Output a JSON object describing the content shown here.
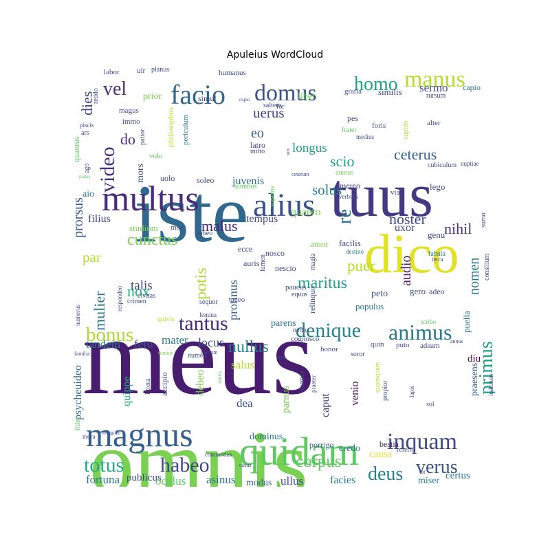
{
  "chart_data": {
    "type": "wordcloud",
    "title": "Apuleius WordCloud",
    "palette": [
      "#440154",
      "#3b528b",
      "#21918c",
      "#5ec962",
      "#fde725"
    ],
    "words": [
      {
        "text": "meus",
        "weight": 100,
        "color": "#481d6f"
      },
      {
        "text": "omnis",
        "weight": 92,
        "color": "#7ad151"
      },
      {
        "text": "iste",
        "weight": 80,
        "color": "#31688e"
      },
      {
        "text": "tuus",
        "weight": 58,
        "color": "#443983"
      },
      {
        "text": "dico",
        "weight": 52,
        "color": "#e0e22a"
      },
      {
        "text": "quidam",
        "weight": 42,
        "color": "#5ec962"
      },
      {
        "text": "multus",
        "weight": 40,
        "color": "#472d7b"
      },
      {
        "text": "alius",
        "weight": 36,
        "color": "#3b528b"
      },
      {
        "text": "magnus",
        "weight": 36,
        "color": "#355f8d"
      },
      {
        "text": "facio",
        "weight": 30,
        "color": "#31688e"
      },
      {
        "text": "domus",
        "weight": 26,
        "color": "#3b528b"
      },
      {
        "text": "manus",
        "weight": 26,
        "color": "#b5de2b"
      },
      {
        "text": "inquam",
        "weight": 25,
        "color": "#3e4989"
      },
      {
        "text": "animus",
        "weight": 24,
        "color": "#2a788e"
      },
      {
        "text": "denique",
        "weight": 22,
        "color": "#26828e"
      },
      {
        "text": "tantus",
        "weight": 23,
        "color": "#482878"
      },
      {
        "text": "totus",
        "weight": 22,
        "color": "#22a884"
      },
      {
        "text": "habeo",
        "weight": 22,
        "color": "#3e4989"
      },
      {
        "text": "bonus",
        "weight": 21,
        "color": "#addc30"
      },
      {
        "text": "homo",
        "weight": 20,
        "color": "#1fa187"
      },
      {
        "text": "deus",
        "weight": 20,
        "color": "#26828e"
      },
      {
        "text": "verus",
        "weight": 20,
        "color": "#3b528b"
      },
      {
        "text": "video",
        "weight": 22,
        "color": "#46327e"
      },
      {
        "text": "vel",
        "weight": 20,
        "color": "#472d7b"
      },
      {
        "text": "re",
        "weight": 20,
        "color": "#2c728e"
      },
      {
        "text": "primus",
        "weight": 20,
        "color": "#1f9e89"
      },
      {
        "text": "corpus",
        "weight": 18,
        "color": "#5ec962"
      },
      {
        "text": "nullus",
        "weight": 17,
        "color": "#2a788e"
      },
      {
        "text": "maritus",
        "weight": 16,
        "color": "#1f9e89"
      },
      {
        "text": "dies",
        "weight": 16,
        "color": "#3e4989"
      },
      {
        "text": "cunctus",
        "weight": 16,
        "color": "#7ad151"
      },
      {
        "text": "mulier",
        "weight": 16,
        "color": "#2c728e"
      },
      {
        "text": "potis",
        "weight": 16,
        "color": "#addc30"
      },
      {
        "text": "noster",
        "weight": 15,
        "color": "#3e4989"
      },
      {
        "text": "ceterus",
        "weight": 15,
        "color": "#355f8d"
      },
      {
        "text": "puer",
        "weight": 15,
        "color": "#b5de2b"
      },
      {
        "text": "nox",
        "weight": 15,
        "color": "#22a884"
      },
      {
        "text": "nihil",
        "weight": 14,
        "color": "#46327e"
      },
      {
        "text": "scio",
        "weight": 14,
        "color": "#1fa187"
      },
      {
        "text": "solus",
        "weight": 14,
        "color": "#25848e"
      },
      {
        "text": "uerus",
        "weight": 14,
        "color": "#3e4989"
      },
      {
        "text": "malus",
        "weight": 14,
        "color": "#482878"
      },
      {
        "text": "audio",
        "weight": 14,
        "color": "#481a6c"
      },
      {
        "text": "nomen",
        "weight": 14,
        "color": "#2c728e"
      },
      {
        "text": "prorsus",
        "weight": 14,
        "color": "#3b528b"
      },
      {
        "text": "eo",
        "weight": 14,
        "color": "#355f8d"
      },
      {
        "text": "longus",
        "weight": 13,
        "color": "#1f9e89"
      },
      {
        "text": "do",
        "weight": 13,
        "color": "#46327e"
      },
      {
        "text": "par",
        "weight": 13,
        "color": "#b5de2b"
      },
      {
        "text": "talis",
        "weight": 11,
        "color": "#3e4989"
      },
      {
        "text": "protinus",
        "weight": 11,
        "color": "#355f8d"
      },
      {
        "text": "mater",
        "weight": 11,
        "color": "#2a788e"
      },
      {
        "text": "locus",
        "weight": 11,
        "color": "#3b528b"
      },
      {
        "text": "fero",
        "weight": 11,
        "color": "#3b528b"
      },
      {
        "text": "tandem",
        "weight": 11,
        "color": "#2a788e"
      },
      {
        "text": "sermo",
        "weight": 11,
        "color": "#3e4989"
      },
      {
        "text": "uxor",
        "weight": 11,
        "color": "#3e4989"
      },
      {
        "text": "filius",
        "weight": 11,
        "color": "#3e4989"
      },
      {
        "text": "tempus",
        "weight": 11,
        "color": "#3e4989"
      },
      {
        "text": "quaero",
        "weight": 11,
        "color": "#7ad151"
      },
      {
        "text": "juvenis",
        "weight": 11,
        "color": "#31688e"
      },
      {
        "text": "psycheuideo",
        "weight": 11,
        "color": "#31688e"
      },
      {
        "text": "quippe",
        "weight": 11,
        "color": "#22a884"
      },
      {
        "text": "debeo",
        "weight": 11,
        "color": "#7ad151"
      },
      {
        "text": "salus",
        "weight": 11,
        "color": "#b5de2b"
      },
      {
        "text": "parens",
        "weight": 10,
        "color": "#2a788e"
      },
      {
        "text": "dea",
        "weight": 10,
        "color": "#3e4989"
      },
      {
        "text": "caput",
        "weight": 11,
        "color": "#443983"
      },
      {
        "text": "venio",
        "weight": 10,
        "color": "#440154"
      },
      {
        "text": "parnus",
        "weight": 11,
        "color": "#7ad151"
      },
      {
        "text": "fortuna",
        "weight": 11,
        "color": "#2a788e"
      },
      {
        "text": "publicus",
        "weight": 10,
        "color": "#3e4989"
      },
      {
        "text": "oculus",
        "weight": 11,
        "color": "#5ec962"
      },
      {
        "text": "asinus",
        "weight": 11,
        "color": "#2c728e"
      },
      {
        "text": "modus",
        "weight": 9,
        "color": "#355f8d"
      },
      {
        "text": "ullus",
        "weight": 11,
        "color": "#3e4989"
      },
      {
        "text": "facies",
        "weight": 10,
        "color": "#2a788e"
      },
      {
        "text": "causa",
        "weight": 11,
        "color": "#e0e22a"
      },
      {
        "text": "certus",
        "weight": 10,
        "color": "#2a788e"
      },
      {
        "text": "miser",
        "weight": 9,
        "color": "#26828e"
      },
      {
        "text": "credo",
        "weight": 9,
        "color": "#2a788e"
      },
      {
        "text": "dominus",
        "weight": 9,
        "color": "#2a788e"
      },
      {
        "text": "porrigo",
        "weight": 8,
        "color": "#355f8d"
      },
      {
        "text": "bestia",
        "weight": 8,
        "color": "#481a6c"
      },
      {
        "text": "refero",
        "weight": 7,
        "color": "#3e4989"
      },
      {
        "text": "diu",
        "weight": 10,
        "color": "#440154"
      },
      {
        "text": "praesens",
        "weight": 10,
        "color": "#355f8d"
      },
      {
        "text": "puella",
        "weight": 9,
        "color": "#2a788e"
      },
      {
        "text": "gero",
        "weight": 9,
        "color": "#3e4989"
      },
      {
        "text": "adeo",
        "weight": 8,
        "color": "#3e4989"
      },
      {
        "text": "populus",
        "weight": 9,
        "color": "#2a788e"
      },
      {
        "text": "peto",
        "weight": 10,
        "color": "#3e4989"
      },
      {
        "text": "facilis",
        "weight": 9,
        "color": "#3e4989"
      },
      {
        "text": "relinquo",
        "weight": 8,
        "color": "#3e4989"
      },
      {
        "text": "paucus",
        "weight": 8,
        "color": "#3e4989"
      },
      {
        "text": "equus",
        "weight": 7,
        "color": "#3e4989"
      },
      {
        "text": "magia",
        "weight": 7,
        "color": "#3e4989"
      },
      {
        "text": "nescio",
        "weight": 8,
        "color": "#3e4989"
      },
      {
        "text": "lumen",
        "weight": 7,
        "color": "#3e4989"
      },
      {
        "text": "auris",
        "weight": 8,
        "color": "#3e4989"
      },
      {
        "text": "ecce",
        "weight": 8,
        "color": "#3e4989"
      },
      {
        "text": "nosco",
        "weight": 8,
        "color": "#3e4989"
      },
      {
        "text": "amor",
        "weight": 8,
        "color": "#7ad151"
      },
      {
        "text": "destino",
        "weight": 6,
        "color": "#2a788e"
      },
      {
        "text": "genu",
        "weight": 9,
        "color": "#3e4989"
      },
      {
        "text": "fabula",
        "weight": 7,
        "color": "#2a788e"
      },
      {
        "text": "sumo",
        "weight": 7,
        "color": "#3e4989"
      },
      {
        "text": "consilium",
        "weight": 7,
        "color": "#3e4989"
      },
      {
        "text": "terra",
        "weight": 7,
        "color": "#3e4989"
      },
      {
        "text": "lego",
        "weight": 8,
        "color": "#3e4989"
      },
      {
        "text": "via",
        "weight": 8,
        "color": "#3e4989"
      },
      {
        "text": "mereo",
        "weight": 8,
        "color": "#3e4989"
      },
      {
        "text": "verbum",
        "weight": 6,
        "color": "#3e4989"
      },
      {
        "text": "cubiculum",
        "weight": 7,
        "color": "#3e4989"
      },
      {
        "text": "nuptiae",
        "weight": 6,
        "color": "#3e4989"
      },
      {
        "text": "aureus",
        "weight": 7,
        "color": "#7ad151"
      },
      {
        "text": "cupido",
        "weight": 7,
        "color": "#b5de2b"
      },
      {
        "text": "alter",
        "weight": 7,
        "color": "#3e4989"
      },
      {
        "text": "foris",
        "weight": 7,
        "color": "#3e4989"
      },
      {
        "text": "pes",
        "weight": 8,
        "color": "#3e4989"
      },
      {
        "text": "frater",
        "weight": 7,
        "color": "#5ec962"
      },
      {
        "text": "liber",
        "weight": 9,
        "color": "#7ad151"
      },
      {
        "text": "prior",
        "weight": 9,
        "color": "#7ad151"
      },
      {
        "text": "gratia",
        "weight": 8,
        "color": "#3e4989"
      },
      {
        "text": "similis",
        "weight": 9,
        "color": "#3e4989"
      },
      {
        "text": "capio",
        "weight": 8,
        "color": "#2a788e"
      },
      {
        "text": "rursum",
        "weight": 7,
        "color": "#3e4989"
      },
      {
        "text": "saltem",
        "weight": 7,
        "color": "#3e4989"
      },
      {
        "text": "for",
        "weight": 7,
        "color": "#3e4989"
      },
      {
        "text": "cupio",
        "weight": 5,
        "color": "#3e4989"
      },
      {
        "text": "simul",
        "weight": 9,
        "color": "#3e4989"
      },
      {
        "text": "humanus",
        "weight": 8,
        "color": "#3e4989"
      },
      {
        "text": "planus",
        "weight": 7,
        "color": "#3e4989"
      },
      {
        "text": "uir",
        "weight": 8,
        "color": "#3e4989"
      },
      {
        "text": "labor",
        "weight": 8,
        "color": "#3e4989"
      },
      {
        "text": "reddo",
        "weight": 7,
        "color": "#3e4989"
      },
      {
        "text": "magus",
        "weight": 8,
        "color": "#3e4989"
      },
      {
        "text": "immo",
        "weight": 8,
        "color": "#3e4989"
      },
      {
        "text": "philosophus",
        "weight": 8,
        "color": "#b5de2b"
      },
      {
        "text": "periculum",
        "weight": 8,
        "color": "#2a788e"
      },
      {
        "text": "latro",
        "weight": 8,
        "color": "#3e4989"
      },
      {
        "text": "mitto",
        "weight": 7,
        "color": "#3e4989"
      },
      {
        "text": "uox",
        "weight": 5,
        "color": "#3e4989"
      },
      {
        "text": "ars",
        "weight": 7,
        "color": "#3e4989"
      },
      {
        "text": "piscis",
        "weight": 7,
        "color": "#3e4989"
      },
      {
        "text": "quantus",
        "weight": 8,
        "color": "#5ec962"
      },
      {
        "text": "ago",
        "weight": 7,
        "color": "#3e4989"
      },
      {
        "text": "patior",
        "weight": 8,
        "color": "#3e4989"
      },
      {
        "text": "mors",
        "weight": 9,
        "color": "#3e4989"
      },
      {
        "text": "volo",
        "weight": 8,
        "color": "#5ec962"
      },
      {
        "text": "pietas",
        "weight": 5,
        "color": "#5ec962"
      },
      {
        "text": "aio",
        "weight": 9,
        "color": "#2a788e"
      },
      {
        "text": "uolo",
        "weight": 8,
        "color": "#3e4989"
      },
      {
        "text": "soleo",
        "weight": 8,
        "color": "#3e4989"
      },
      {
        "text": "summus",
        "weight": 7,
        "color": "#5ec962"
      },
      {
        "text": "superus",
        "weight": 7,
        "color": "#7ad151"
      },
      {
        "text": "ceterum",
        "weight": 6,
        "color": "#3e4989"
      },
      {
        "text": "studium",
        "weight": 8,
        "color": "#7ad151"
      },
      {
        "text": "mos",
        "weight": 8,
        "color": "#3e4989"
      },
      {
        "text": "iubeo",
        "weight": 7,
        "color": "#3e4989"
      },
      {
        "text": "medius",
        "weight": 7,
        "color": "#3e4989"
      },
      {
        "text": "civitas",
        "weight": 7,
        "color": "#3e4989"
      },
      {
        "text": "respondeo",
        "weight": 7,
        "color": "#3e4989"
      },
      {
        "text": "sequor",
        "weight": 7,
        "color": "#3e4989"
      },
      {
        "text": "femina",
        "weight": 6,
        "color": "#3e4989"
      },
      {
        "text": "crimen",
        "weight": 7,
        "color": "#3e4989"
      },
      {
        "text": "taceo",
        "weight": 8,
        "color": "#3e4989"
      },
      {
        "text": "quivis",
        "weight": 7,
        "color": "#b5de2b"
      },
      {
        "text": "numerus",
        "weight": 6,
        "color": "#3e4989"
      },
      {
        "text": "nemo",
        "weight": 7,
        "color": "#3e4989"
      },
      {
        "text": "cognosco",
        "weight": 8,
        "color": "#3e4989"
      },
      {
        "text": "exitium",
        "weight": 6,
        "color": "#3e4989"
      },
      {
        "text": "numen",
        "weight": 7,
        "color": "#3e4989"
      },
      {
        "text": "nimius",
        "weight": 6,
        "color": "#7ad151"
      },
      {
        "text": "familia",
        "weight": 6,
        "color": "#3e4989"
      },
      {
        "text": "honor",
        "weight": 8,
        "color": "#3e4989"
      },
      {
        "text": "soror",
        "weight": 8,
        "color": "#3e4989"
      },
      {
        "text": "os",
        "weight": 8,
        "color": "#3e4989"
      },
      {
        "text": "quin",
        "weight": 8,
        "color": "#3e4989"
      },
      {
        "text": "puto",
        "weight": 8,
        "color": "#3e4989"
      },
      {
        "text": "adsum",
        "weight": 8,
        "color": "#3e4989"
      },
      {
        "text": "annus",
        "weight": 6,
        "color": "#3e4989"
      },
      {
        "text": "scribo",
        "weight": 6,
        "color": "#5ec962"
      },
      {
        "text": "accipio",
        "weight": 8,
        "color": "#3e4989"
      },
      {
        "text": "littera",
        "weight": 7,
        "color": "#3e4989"
      },
      {
        "text": "senex",
        "weight": 6,
        "color": "#5ec962"
      },
      {
        "text": "carmen",
        "weight": 7,
        "color": "#3e4989"
      },
      {
        "text": "praeter",
        "weight": 7,
        "color": "#3e4989"
      },
      {
        "text": "quamquam",
        "weight": 7,
        "color": "#b5de2b"
      },
      {
        "text": "propior",
        "weight": 7,
        "color": "#3e4989"
      },
      {
        "text": "lapis",
        "weight": 6,
        "color": "#3e4989"
      },
      {
        "text": "sol",
        "weight": 7,
        "color": "#3e4989"
      },
      {
        "text": "iudicium",
        "weight": 7,
        "color": "#3e4989"
      },
      {
        "text": "fides",
        "weight": 7,
        "color": "#5ec962"
      },
      {
        "text": "mora",
        "weight": 6,
        "color": "#3e4989"
      },
      {
        "text": "vestigium",
        "weight": 5,
        "color": "#3e4989"
      },
      {
        "text": "commodus",
        "weight": 7,
        "color": "#3e4989"
      },
      {
        "text": "casus",
        "weight": 6,
        "color": "#3e4989"
      },
      {
        "text": "tot",
        "weight": 6,
        "color": "#3e4989"
      }
    ]
  }
}
